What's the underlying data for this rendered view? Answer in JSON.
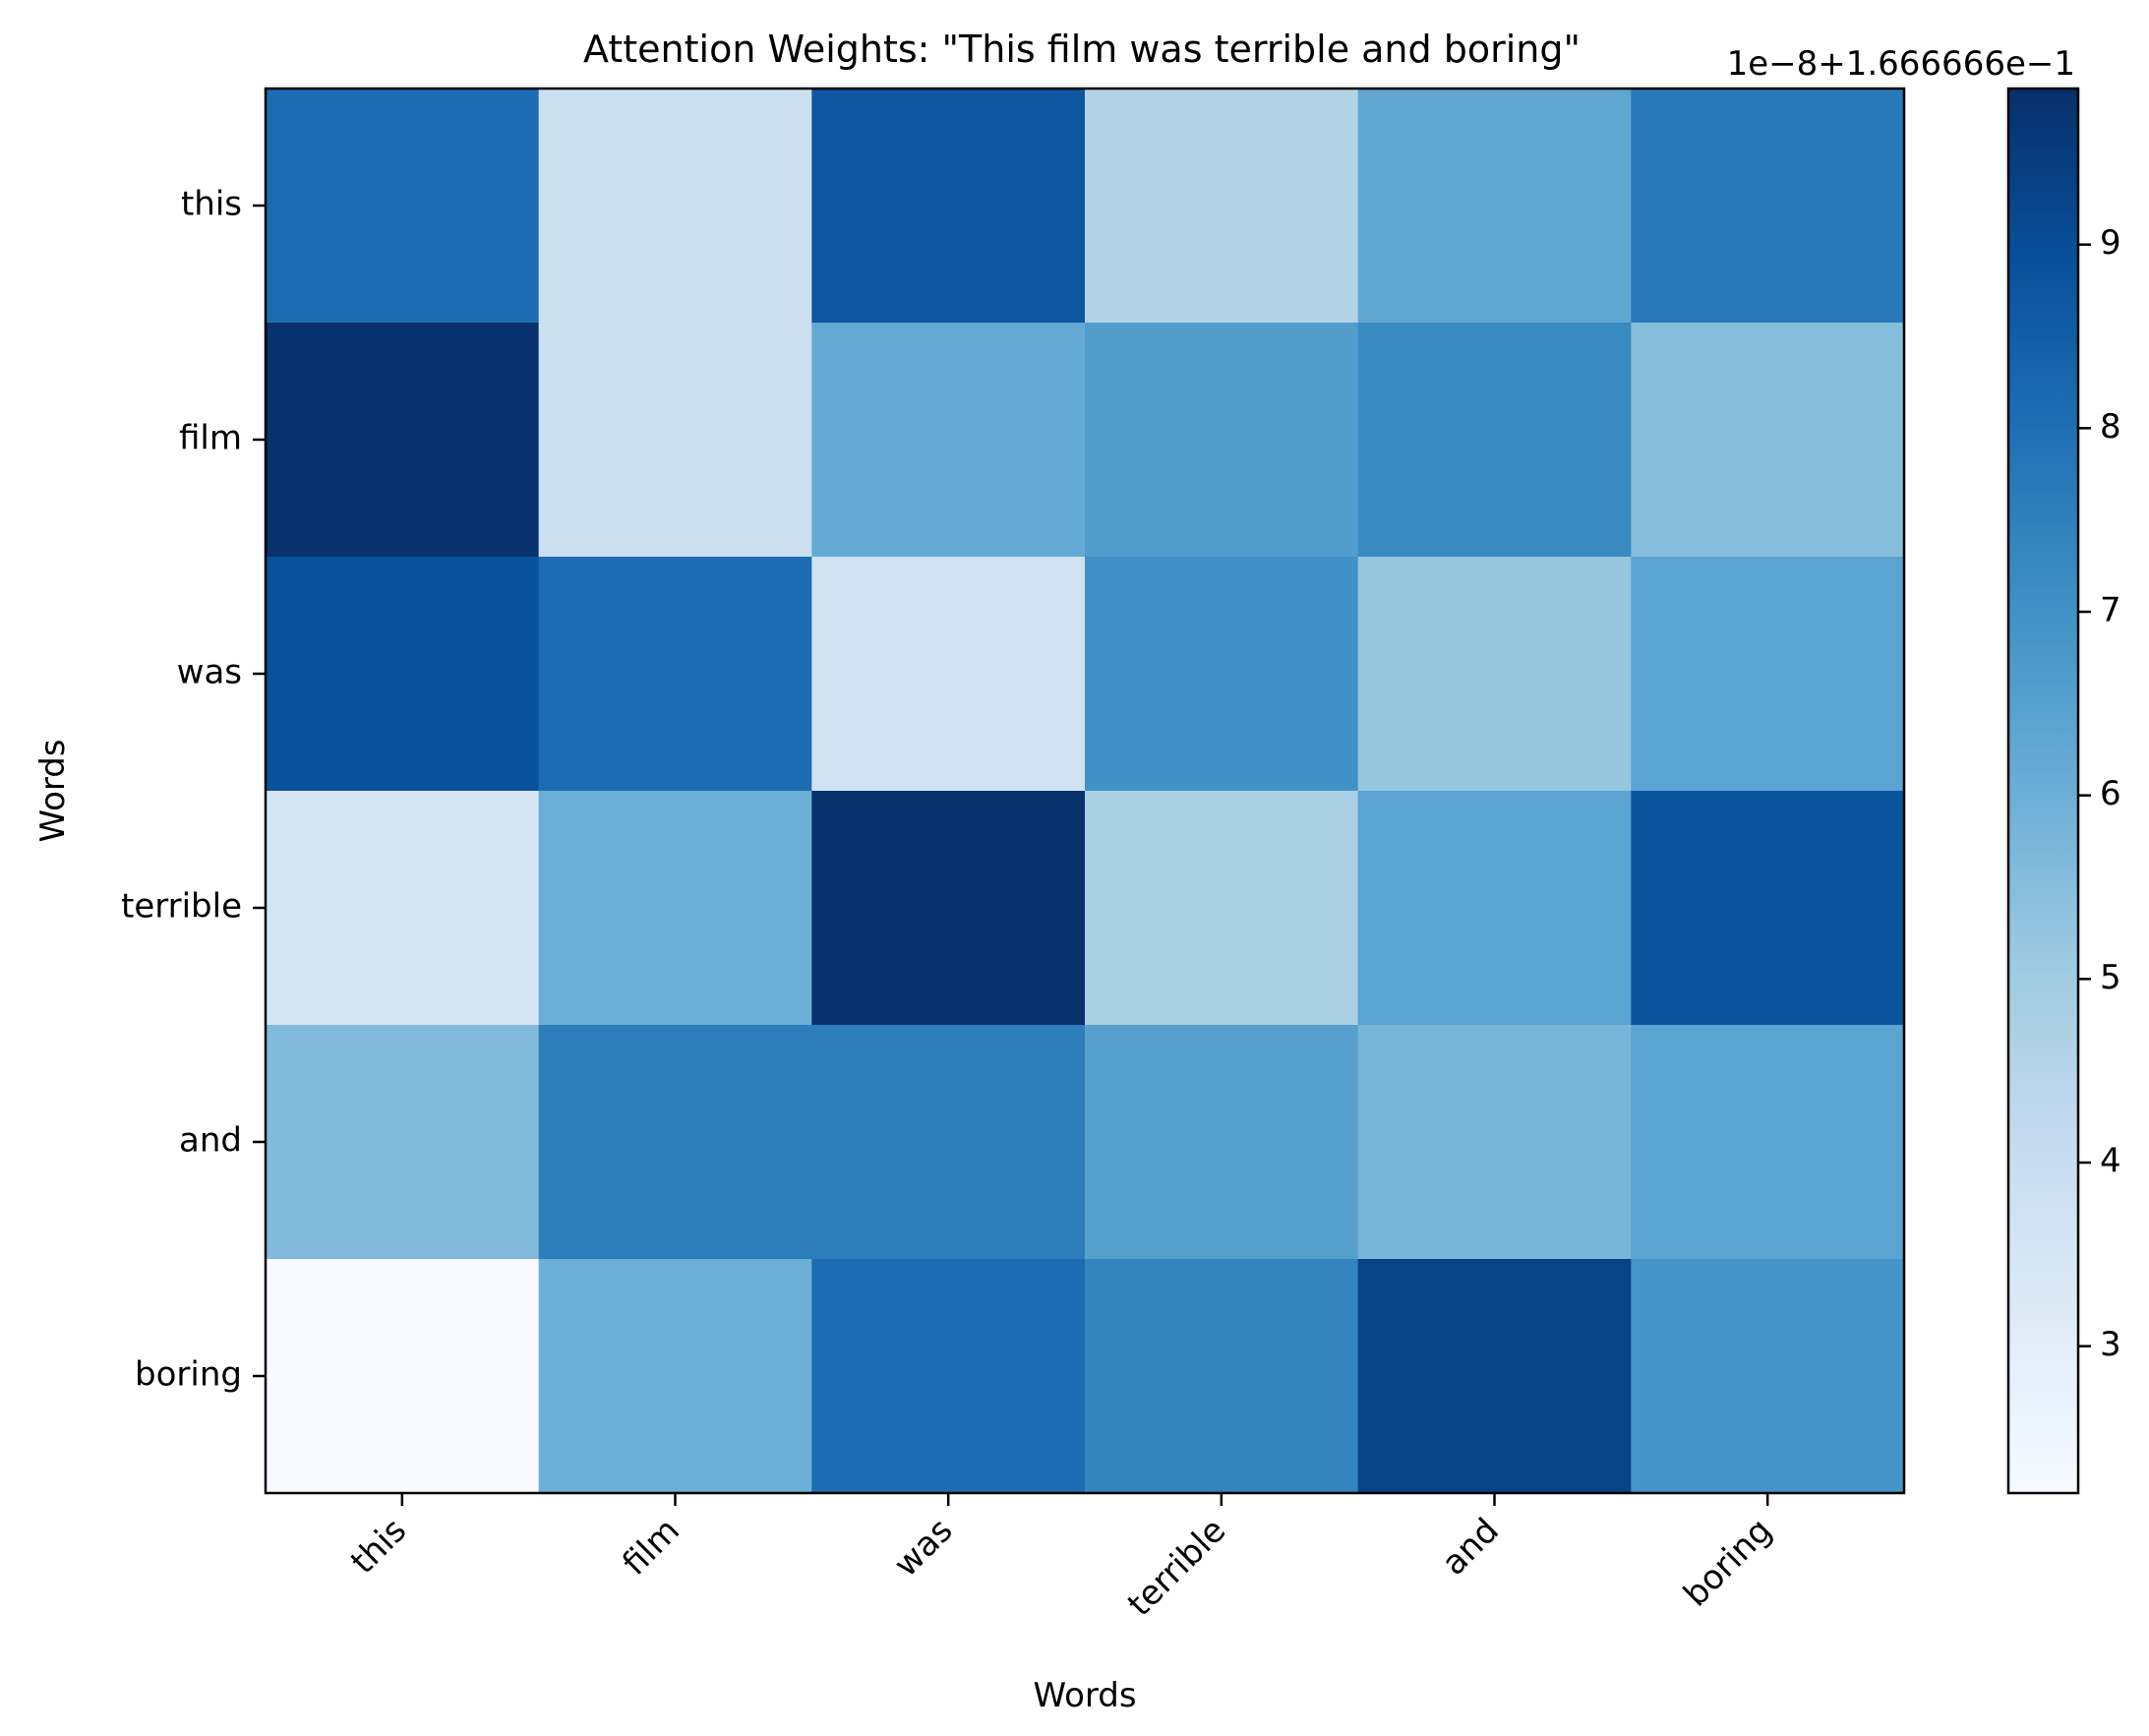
{
  "chart_data": {
    "type": "heatmap",
    "title": "Attention Weights: \"This film was terrible and boring\"",
    "xlabel": "Words",
    "ylabel": "Words",
    "x_categories": [
      "this",
      "film",
      "was",
      "terrible",
      "and",
      "boring"
    ],
    "y_categories": [
      "this",
      "film",
      "was",
      "terrible",
      "and",
      "boring"
    ],
    "values": [
      [
        8.1,
        3.9,
        8.7,
        4.6,
        6.3,
        7.7
      ],
      [
        9.8,
        3.9,
        6.2,
        6.6,
        7.2,
        5.5
      ],
      [
        8.9,
        8.1,
        3.7,
        7.0,
        5.2,
        6.4
      ],
      [
        3.5,
        6.0,
        9.8,
        4.8,
        6.4,
        8.8
      ],
      [
        5.6,
        7.6,
        7.6,
        6.5,
        5.8,
        6.4
      ],
      [
        2.2,
        6.0,
        8.1,
        7.4,
        9.3,
        6.9
      ]
    ],
    "colormap": "Blues",
    "color_range": [
      2.2,
      9.85
    ],
    "colorbar": {
      "ticks": [
        "3",
        "4",
        "5",
        "6",
        "7",
        "8",
        "9"
      ],
      "offset_label": "1e−8+1.666666e−1"
    },
    "grid": false,
    "legend": "colorbar-right"
  }
}
